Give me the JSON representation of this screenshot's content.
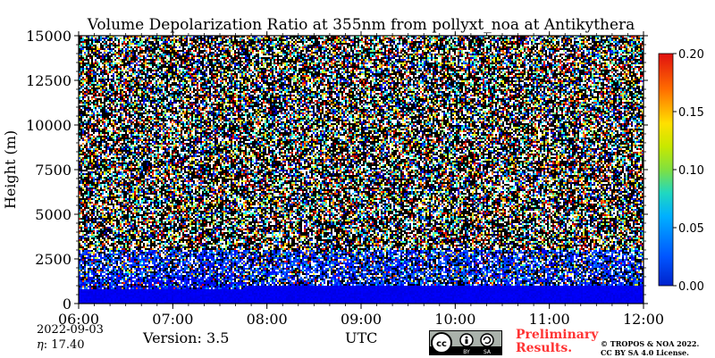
{
  "chart_data": {
    "type": "heatmap",
    "title": "Volume Depolarization Ratio at 355nm from pollyxt_noa at Antikythera",
    "ylabel": "Height (m)",
    "xlabel": "UTC",
    "x_tick_labels": [
      "06:00",
      "07:00",
      "08:00",
      "09:00",
      "10:00",
      "11:00",
      "12:00"
    ],
    "x_range_hours": [
      6,
      12
    ],
    "y_ticks": [
      0,
      2500,
      5000,
      7500,
      10000,
      12500,
      15000
    ],
    "y_tick_labels": [
      "0",
      "2500",
      "5000",
      "7500",
      "10000",
      "12500",
      "15000"
    ],
    "ylim": [
      0,
      15000
    ],
    "colorbar": {
      "range": [
        0,
        0.2
      ],
      "ticks": [
        0,
        0.05,
        0.1,
        0.15,
        0.2
      ],
      "tick_labels": [
        "0.00",
        "0.05",
        "0.10",
        "0.15",
        "0.20"
      ],
      "colormap": "jet"
    },
    "field": {
      "boundary_layer_top_m": 1000,
      "boundary_layer_value": 0.01,
      "upper_noise_range": [
        0,
        0.2
      ],
      "transition_layer_m": [
        1000,
        3000
      ]
    }
  },
  "info": {
    "date": "2022-09-03",
    "eta_symbol": "η",
    "eta_value": ":  17.40",
    "version": "Version: 3.5",
    "preliminary": "Preliminary Results.",
    "copyright_line1": "© TROPOS & NOA 2022.",
    "copyright_line2": "CC BY SA 4.0 License.",
    "license_badge": {
      "cc": "cc",
      "by": "BY",
      "sa": "SA"
    }
  }
}
